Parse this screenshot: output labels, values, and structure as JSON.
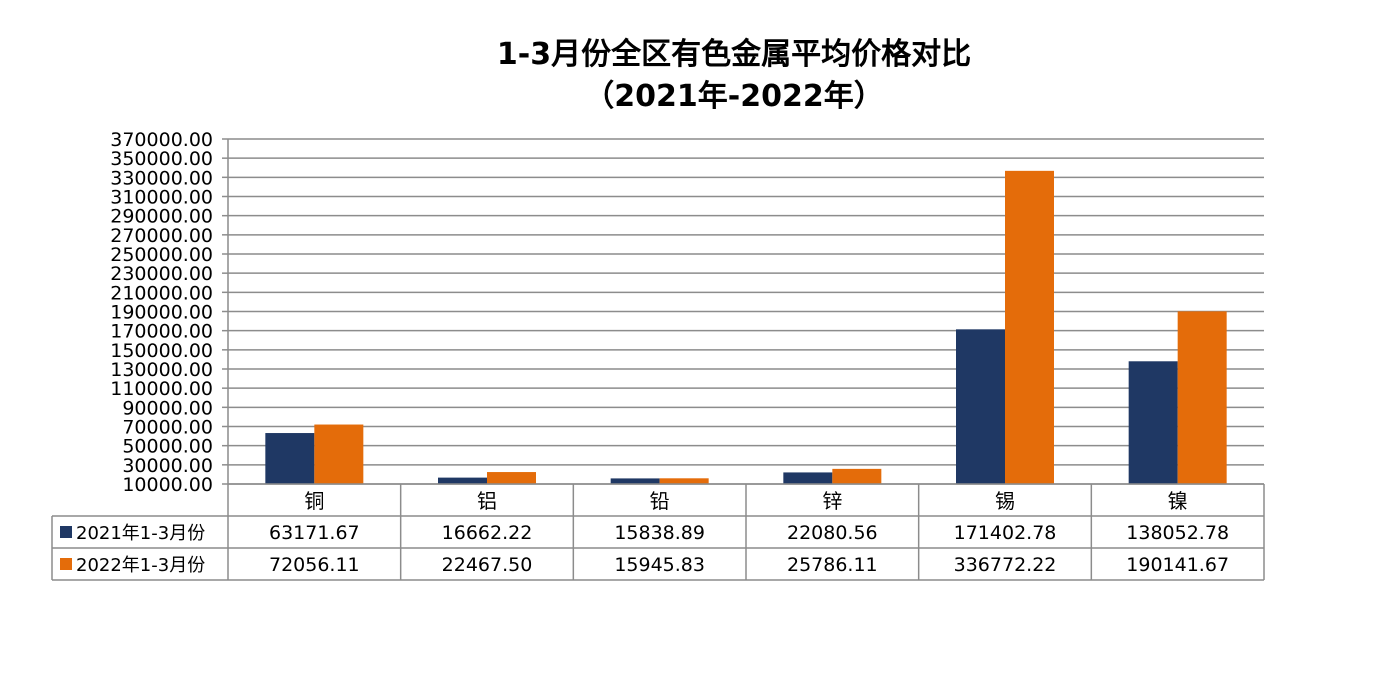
{
  "chart_data": {
    "type": "bar",
    "title_line1": "1-3月份全区有色金属平均价格对比",
    "title_line2": "（2021年-2022年）",
    "categories": [
      "铜",
      "铝",
      "铅",
      "锌",
      "锡",
      "镍"
    ],
    "series": [
      {
        "name": "2021年1-3月份",
        "color": "#1f3864",
        "values": [
          63171.67,
          16662.22,
          15838.89,
          22080.56,
          171402.78,
          138052.78
        ],
        "labels": [
          "63171.67",
          "16662.22",
          "15838.89",
          "22080.56",
          "171402.78",
          "138052.78"
        ]
      },
      {
        "name": "2022年1-3月份",
        "color": "#e46c0a",
        "values": [
          72056.11,
          22467.5,
          15945.83,
          25786.11,
          336772.22,
          190141.67
        ],
        "labels": [
          "72056.11",
          "22467.50",
          "15945.83",
          "25786.11",
          "336772.22",
          "190141.67"
        ]
      }
    ],
    "ylim": [
      10000,
      370000
    ],
    "ytick_step": 20000,
    "ytick_labels": [
      "10000.00",
      "30000.00",
      "50000.00",
      "70000.00",
      "90000.00",
      "110000.00",
      "130000.00",
      "150000.00",
      "170000.00",
      "190000.00",
      "210000.00",
      "230000.00",
      "250000.00",
      "270000.00",
      "290000.00",
      "310000.00",
      "330000.00",
      "350000.00",
      "370000.00"
    ],
    "grid": true,
    "legend_position": "data-table"
  }
}
